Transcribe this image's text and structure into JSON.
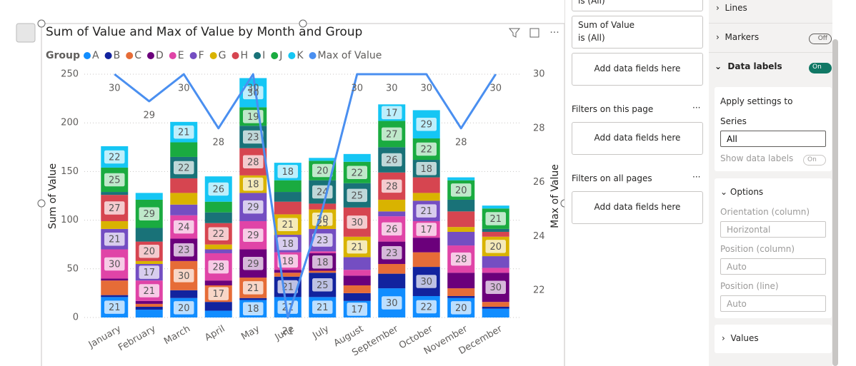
{
  "chart_data": {
    "type": "bar",
    "stacked": true,
    "title": "Sum of Value and Max of Value by Month and Group",
    "legend_title": "Group",
    "y_label": "Sum of Value",
    "y2_label": "Max of Value",
    "categories": [
      "January",
      "February",
      "March",
      "April",
      "May",
      "June",
      "July",
      "August",
      "September",
      "October",
      "November",
      "December"
    ],
    "ylim": [
      0,
      250
    ],
    "yticks": [
      0,
      50,
      100,
      150,
      200,
      250
    ],
    "y2lim": [
      21,
      30
    ],
    "y2ticks": [
      22,
      24,
      26,
      28,
      30
    ],
    "grid": true,
    "data_labels": true,
    "series": [
      {
        "name": "A",
        "color": "#118DFF",
        "values": [
          21,
          8,
          20,
          7,
          18,
          21,
          21,
          17,
          30,
          22,
          20,
          9
        ]
      },
      {
        "name": "B",
        "color": "#12239E",
        "values": [
          2,
          3,
          8,
          9,
          2,
          21,
          25,
          8,
          15,
          30,
          2,
          2
        ]
      },
      {
        "name": "C",
        "color": "#E66C37",
        "values": [
          15,
          3,
          30,
          17,
          21,
          4,
          2,
          8,
          10,
          15,
          8,
          5
        ]
      },
      {
        "name": "D",
        "color": "#6B007B",
        "values": [
          2,
          3,
          23,
          5,
          29,
          3,
          18,
          10,
          23,
          15,
          16,
          30
        ]
      },
      {
        "name": "E",
        "color": "#E044A7",
        "values": [
          30,
          21,
          24,
          28,
          29,
          18,
          2,
          6,
          26,
          17,
          28,
          5
        ]
      },
      {
        "name": "F",
        "color": "#744EC2",
        "values": [
          21,
          17,
          11,
          4,
          29,
          18,
          23,
          13,
          5,
          21,
          14,
          12
        ]
      },
      {
        "name": "G",
        "color": "#D9B300",
        "values": [
          8,
          3,
          12,
          5,
          18,
          21,
          20,
          21,
          12,
          8,
          5,
          20
        ]
      },
      {
        "name": "H",
        "color": "#D64550",
        "values": [
          27,
          20,
          15,
          22,
          28,
          13,
          6,
          30,
          28,
          16,
          16,
          5
        ]
      },
      {
        "name": "I",
        "color": "#197278",
        "values": [
          3,
          14,
          22,
          11,
          23,
          10,
          24,
          25,
          26,
          18,
          12,
          3
        ]
      },
      {
        "name": "J",
        "color": "#1AAB40",
        "values": [
          25,
          29,
          15,
          11,
          19,
          12,
          20,
          22,
          27,
          22,
          20,
          21
        ]
      },
      {
        "name": "K",
        "color": "#15C6F4",
        "values": [
          22,
          7,
          21,
          26,
          30,
          18,
          3,
          8,
          17,
          29,
          3,
          3
        ]
      },
      {
        "name": "Max of Value",
        "color": "#4A8FF0",
        "type": "line",
        "axis": "y2",
        "values": [
          30,
          29,
          30,
          28,
          30,
          21,
          25,
          30,
          30,
          30,
          28,
          30
        ]
      }
    ]
  },
  "filters_pane": {
    "card_top": "is (All)",
    "card_title": "Sum of Value",
    "card_sub": "is (All)",
    "add_1": "Add data fields here",
    "page_title": "Filters on this page",
    "add_2": "Add data fields here",
    "all_title": "Filters on all pages",
    "add_3": "Add data fields here"
  },
  "format_pane": {
    "lines": "Lines",
    "markers": "Markers",
    "markers_toggle": "Off",
    "data_labels": "Data labels",
    "data_labels_toggle": "On",
    "apply_to": "Apply settings to",
    "series_label": "Series",
    "series_value": "All",
    "show_labels": "Show data labels",
    "show_labels_toggle": "On",
    "options": "Options",
    "orientation_label": "Orientation (column)",
    "orientation_value": "Horizontal",
    "position_col_label": "Position (column)",
    "position_col_value": "Auto",
    "position_line_label": "Position (line)",
    "position_line_value": "Auto",
    "values": "Values"
  }
}
